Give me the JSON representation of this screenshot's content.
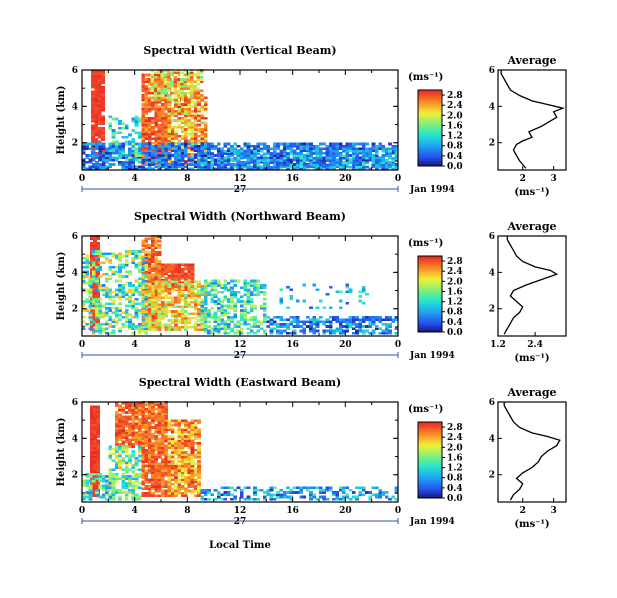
{
  "figure": {
    "xlabel": "Local Time",
    "day_label": "27",
    "date_label": "Jan 1994",
    "unit_label": "(ms⁻¹)",
    "avg_title": "Average",
    "avg_xlabel": "(ms⁻¹)"
  },
  "chart_data": [
    {
      "type": "heatmap",
      "title": "Spectral Width (Vertical Beam)",
      "ylabel": "Height (km)",
      "xlabel": "Local Time",
      "x_ticks": [
        "0",
        "4",
        "8",
        "12",
        "16",
        "20",
        "0"
      ],
      "xlim": [
        0,
        24
      ],
      "y_ticks": [
        "2",
        "4",
        "6"
      ],
      "ylim": [
        0.5,
        6
      ],
      "colorbar": {
        "ticks": [
          "0.0",
          "0.4",
          "0.8",
          "1.2",
          "1.6",
          "2.0",
          "2.4",
          "2.8"
        ],
        "range": [
          0.0,
          3.0
        ]
      },
      "seed": 11,
      "blocks": [
        {
          "x": [
            0.7,
            1.5
          ],
          "y": [
            1.0,
            6.0
          ],
          "v": [
            2.8,
            3.0
          ],
          "f": 0.95
        },
        {
          "x": [
            4.5,
            6.6
          ],
          "y": [
            0.8,
            5.8
          ],
          "v": [
            2.4,
            3.0
          ],
          "f": 0.9
        },
        {
          "x": [
            5.2,
            9.0
          ],
          "y": [
            4.3,
            6.0
          ],
          "v": [
            1.5,
            2.9
          ],
          "f": 0.7
        },
        {
          "x": [
            6.5,
            9.5
          ],
          "y": [
            0.8,
            4.5
          ],
          "v": [
            1.8,
            3.0
          ],
          "f": 0.75
        },
        {
          "x": [
            0.0,
            24.0
          ],
          "y": [
            0.5,
            2.0
          ],
          "v": [
            0.1,
            1.0
          ],
          "f": 0.75
        },
        {
          "x": [
            9.0,
            24.0
          ],
          "y": [
            0.6,
            1.6
          ],
          "v": [
            0.3,
            1.4
          ],
          "f": 0.55
        },
        {
          "x": [
            2.0,
            4.5
          ],
          "y": [
            1.0,
            3.5
          ],
          "v": [
            0.6,
            1.8
          ],
          "f": 0.35
        }
      ],
      "avg": {
        "xlim": [
          1.2,
          3.4
        ],
        "x_ticks": [
          "2",
          "3"
        ],
        "x_tick_vals": [
          2,
          3
        ],
        "ylim": [
          0.5,
          6
        ],
        "y_ticks": [
          "2",
          "4",
          "6"
        ],
        "profile": [
          [
            2.1,
            0.6
          ],
          [
            2.0,
            0.8
          ],
          [
            1.9,
            1.0
          ],
          [
            1.8,
            1.3
          ],
          [
            1.7,
            1.6
          ],
          [
            1.8,
            1.9
          ],
          [
            2.0,
            2.1
          ],
          [
            2.3,
            2.3
          ],
          [
            2.2,
            2.6
          ],
          [
            2.6,
            2.9
          ],
          [
            2.9,
            3.2
          ],
          [
            3.1,
            3.4
          ],
          [
            3.0,
            3.7
          ],
          [
            3.3,
            3.9
          ],
          [
            2.8,
            4.1
          ],
          [
            2.3,
            4.3
          ],
          [
            1.9,
            4.6
          ],
          [
            1.6,
            4.9
          ],
          [
            1.5,
            5.2
          ],
          [
            1.4,
            5.5
          ],
          [
            1.3,
            5.8
          ],
          [
            1.3,
            6.0
          ]
        ]
      }
    },
    {
      "type": "heatmap",
      "title": "Spectral Width (Northward Beam)",
      "ylabel": "Height (km)",
      "xlabel": "Local Time",
      "x_ticks": [
        "0",
        "4",
        "8",
        "12",
        "16",
        "20",
        "0"
      ],
      "xlim": [
        0,
        24
      ],
      "y_ticks": [
        "2",
        "4",
        "6"
      ],
      "ylim": [
        0.5,
        6
      ],
      "colorbar": {
        "ticks": [
          "0.0",
          "0.4",
          "0.8",
          "1.2",
          "1.6",
          "2.0",
          "2.4",
          "2.8"
        ],
        "range": [
          0.0,
          3.0
        ]
      },
      "seed": 23,
      "blocks": [
        {
          "x": [
            0.6,
            1.3
          ],
          "y": [
            0.8,
            6.0
          ],
          "v": [
            2.8,
            3.0
          ],
          "f": 0.95
        },
        {
          "x": [
            4.5,
            6.0
          ],
          "y": [
            0.8,
            6.0
          ],
          "v": [
            2.2,
            3.0
          ],
          "f": 0.85
        },
        {
          "x": [
            6.0,
            8.5
          ],
          "y": [
            3.0,
            4.5
          ],
          "v": [
            2.6,
            3.0
          ],
          "f": 0.9
        },
        {
          "x": [
            5.0,
            9.5
          ],
          "y": [
            0.8,
            3.5
          ],
          "v": [
            1.6,
            2.8
          ],
          "f": 0.7
        },
        {
          "x": [
            0.0,
            5.0
          ],
          "y": [
            0.6,
            5.2
          ],
          "v": [
            0.6,
            2.4
          ],
          "f": 0.5
        },
        {
          "x": [
            9.0,
            14.0
          ],
          "y": [
            0.6,
            3.5
          ],
          "v": [
            0.6,
            2.0
          ],
          "f": 0.55
        },
        {
          "x": [
            14.0,
            24.0
          ],
          "y": [
            0.6,
            1.5
          ],
          "v": [
            0.1,
            1.2
          ],
          "f": 0.6
        },
        {
          "x": [
            15.0,
            22.0
          ],
          "y": [
            2.0,
            3.3
          ],
          "v": [
            0.3,
            1.5
          ],
          "f": 0.15
        }
      ],
      "avg": {
        "xlim": [
          1.2,
          3.4
        ],
        "x_ticks": [
          "1.2",
          "2.4"
        ],
        "x_tick_vals": [
          1.2,
          2.4
        ],
        "ylim": [
          0.5,
          6
        ],
        "y_ticks": [
          "2",
          "4",
          "6"
        ],
        "profile": [
          [
            1.4,
            0.6
          ],
          [
            1.5,
            0.9
          ],
          [
            1.6,
            1.2
          ],
          [
            1.7,
            1.5
          ],
          [
            1.9,
            1.8
          ],
          [
            2.0,
            2.1
          ],
          [
            1.8,
            2.4
          ],
          [
            1.6,
            2.7
          ],
          [
            1.7,
            3.0
          ],
          [
            2.1,
            3.3
          ],
          [
            2.6,
            3.6
          ],
          [
            3.1,
            3.9
          ],
          [
            2.9,
            4.1
          ],
          [
            2.4,
            4.3
          ],
          [
            2.0,
            4.6
          ],
          [
            1.8,
            4.9
          ],
          [
            1.7,
            5.2
          ],
          [
            1.6,
            5.5
          ],
          [
            1.5,
            5.8
          ],
          [
            1.5,
            6.0
          ]
        ]
      }
    },
    {
      "type": "heatmap",
      "title": "Spectral Width (Eastward Beam)",
      "ylabel": "Height (km)",
      "xlabel": "Local Time",
      "x_ticks": [
        "0",
        "4",
        "8",
        "12",
        "16",
        "20",
        "0"
      ],
      "xlim": [
        0,
        24
      ],
      "y_ticks": [
        "2",
        "4",
        "6"
      ],
      "ylim": [
        0.5,
        6
      ],
      "colorbar": {
        "ticks": [
          "0.0",
          "0.4",
          "0.8",
          "1.2",
          "1.6",
          "2.0",
          "2.4",
          "2.8"
        ],
        "range": [
          0.0,
          3.0
        ]
      },
      "seed": 37,
      "blocks": [
        {
          "x": [
            0.6,
            1.3
          ],
          "y": [
            0.8,
            5.8
          ],
          "v": [
            2.8,
            3.0
          ],
          "f": 0.95
        },
        {
          "x": [
            2.5,
            4.5
          ],
          "y": [
            3.5,
            6.0
          ],
          "v": [
            2.4,
            3.0
          ],
          "f": 0.85
        },
        {
          "x": [
            4.5,
            6.5
          ],
          "y": [
            0.8,
            6.0
          ],
          "v": [
            2.4,
            3.0
          ],
          "f": 0.9
        },
        {
          "x": [
            6.5,
            9.0
          ],
          "y": [
            0.8,
            5.0
          ],
          "v": [
            2.0,
            3.0
          ],
          "f": 0.8
        },
        {
          "x": [
            2.0,
            4.5
          ],
          "y": [
            0.6,
            3.5
          ],
          "v": [
            0.8,
            2.4
          ],
          "f": 0.55
        },
        {
          "x": [
            9.0,
            24.0
          ],
          "y": [
            0.6,
            1.3
          ],
          "v": [
            0.2,
            1.4
          ],
          "f": 0.45
        },
        {
          "x": [
            0.0,
            2.5
          ],
          "y": [
            0.6,
            2.0
          ],
          "v": [
            0.6,
            2.0
          ],
          "f": 0.5
        }
      ],
      "avg": {
        "xlim": [
          1.2,
          3.4
        ],
        "x_ticks": [
          "2",
          "3"
        ],
        "x_tick_vals": [
          2,
          3
        ],
        "ylim": [
          0.5,
          6
        ],
        "y_ticks": [
          "2",
          "4",
          "6"
        ],
        "profile": [
          [
            1.6,
            0.6
          ],
          [
            1.7,
            0.9
          ],
          [
            1.9,
            1.2
          ],
          [
            2.0,
            1.5
          ],
          [
            1.8,
            1.8
          ],
          [
            2.0,
            2.1
          ],
          [
            2.3,
            2.4
          ],
          [
            2.5,
            2.7
          ],
          [
            2.6,
            3.0
          ],
          [
            2.8,
            3.3
          ],
          [
            3.1,
            3.6
          ],
          [
            3.2,
            3.9
          ],
          [
            2.8,
            4.1
          ],
          [
            2.3,
            4.3
          ],
          [
            1.9,
            4.6
          ],
          [
            1.7,
            4.9
          ],
          [
            1.6,
            5.2
          ],
          [
            1.5,
            5.5
          ],
          [
            1.4,
            5.8
          ],
          [
            1.4,
            6.0
          ]
        ]
      }
    }
  ]
}
